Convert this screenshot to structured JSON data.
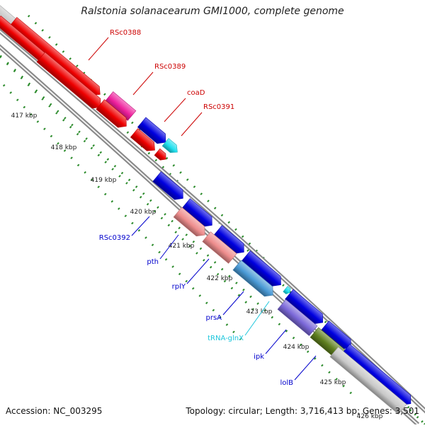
{
  "title": "Ralstonia solanacearum GMI1000, complete genome",
  "accession": "Accession: NC_003295",
  "summary": "Topology: circular; Length: 3,716,413 bp; Genes: 3,501",
  "colors": {
    "backbone": "#888888",
    "tick": "#2a8a2a",
    "red": "#ee0000",
    "magenta": "#ee1f9c",
    "blue": "#0000e0",
    "cyan": "#1fe0ee",
    "pink": "#ee8d8d",
    "gray": "#c8c8c8",
    "lavender": "#7b68d9",
    "olive": "#5f7f1f",
    "steel": "#4a9ad6",
    "label_red": "#cc0000",
    "label_blue": "#0000cc",
    "label_cyan": "#1cc6dc"
  },
  "scale_labels": [
    "417 kbp",
    "418 kbp",
    "419 kbp",
    "420 kbp",
    "421 kbp",
    "422 kbp",
    "423 kbp",
    "424 kbp",
    "425 kbp",
    "426 kbp"
  ],
  "features": [
    {
      "name": "RSc0388",
      "color": "red"
    },
    {
      "name": "RSc0389",
      "color": "magenta"
    },
    {
      "name": "coaD",
      "color": "blue"
    },
    {
      "name": "RSc0391",
      "color": "cyan"
    },
    {
      "name": "RSc0392",
      "color": "blue"
    },
    {
      "name": "pth",
      "color": "pink"
    },
    {
      "name": "rplY",
      "color": "blue"
    },
    {
      "name": "prsA",
      "color": "blue"
    },
    {
      "name": "tRNA-glnX",
      "color": "cyan"
    },
    {
      "name": "ipk",
      "color": "lavender"
    },
    {
      "name": "lolB",
      "color": "blue"
    }
  ]
}
